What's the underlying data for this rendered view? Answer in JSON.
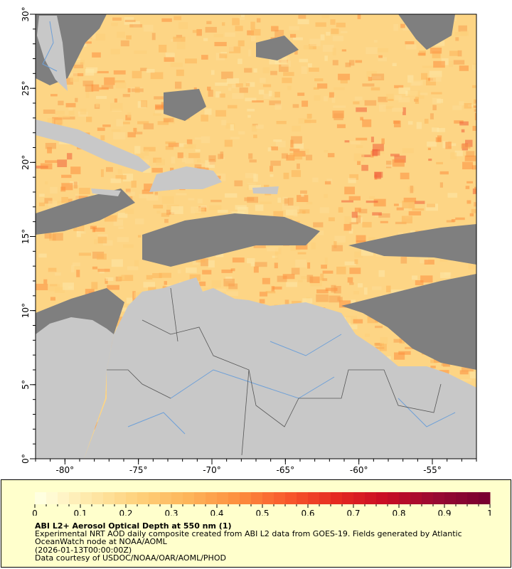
{
  "map": {
    "lon_range": [
      -82,
      -52
    ],
    "lat_range": [
      0,
      30
    ],
    "x_ticks": [
      "-80°",
      "-75°",
      "-70°",
      "-65°",
      "-60°",
      "-55°"
    ],
    "x_tick_values": [
      -80,
      -75,
      -70,
      -65,
      -60,
      -55
    ],
    "y_ticks": [
      "0°",
      "5°",
      "10°",
      "15°",
      "20°",
      "25°",
      "30°"
    ],
    "y_tick_values": [
      0,
      5,
      10,
      15,
      20,
      25,
      30
    ],
    "colors": {
      "land": "#c8c8c8",
      "no_data": "#7f7f7f",
      "rivers": "#6ea0d8",
      "borders": "#555555"
    }
  },
  "colorbar": {
    "min": 0,
    "max": 1,
    "tick_labels": [
      "0",
      "0.1",
      "0.2",
      "0.3",
      "0.4",
      "0.5",
      "0.6",
      "0.7",
      "0.8",
      "0.9",
      "1"
    ],
    "palette": [
      "#ffffe0",
      "#fee8a8",
      "#fed07a",
      "#fdb55a",
      "#fd8f3e",
      "#f85a2c",
      "#e52a20",
      "#c80c24",
      "#990a32",
      "#7a0030"
    ]
  },
  "legend": {
    "title": "ABI L2+ Aerosol Optical Depth at 550 nm (1)",
    "line1": "Experimental NRT AOD daily composite created from ABI L2 data from GOES-19. Fields generated by Atlantic",
    "line2": "OceanWatch node at NOAA/AOML",
    "time": "(2026-01-13T00:00:00Z)",
    "credit": "Data courtesy of USDOC/NOAA/OAR/AOML/PHOD"
  }
}
